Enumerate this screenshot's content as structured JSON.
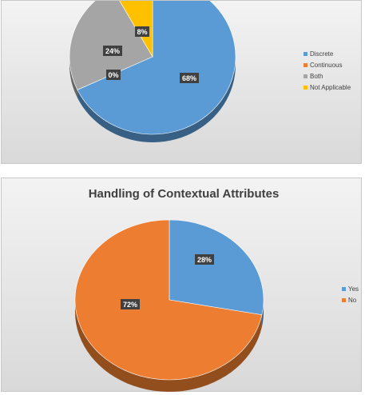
{
  "chart_data": [
    {
      "type": "pie",
      "title": "",
      "categories": [
        "Discrete",
        "Continuous",
        "Both",
        "Not Applicable"
      ],
      "values": [
        68,
        0,
        24,
        8
      ],
      "data_labels": [
        "68%",
        "0%",
        "24%",
        "8%"
      ],
      "colors": [
        "#5b9bd5",
        "#ed7d31",
        "#a5a5a5",
        "#ffc000"
      ],
      "legend": "right"
    },
    {
      "type": "pie",
      "title": "Handling of Contextual Attributes",
      "categories": [
        "Yes",
        "No"
      ],
      "values": [
        28,
        72
      ],
      "data_labels": [
        "28%",
        "72%"
      ],
      "colors": [
        "#5b9bd5",
        "#ed7d31"
      ],
      "legend": "right"
    }
  ]
}
